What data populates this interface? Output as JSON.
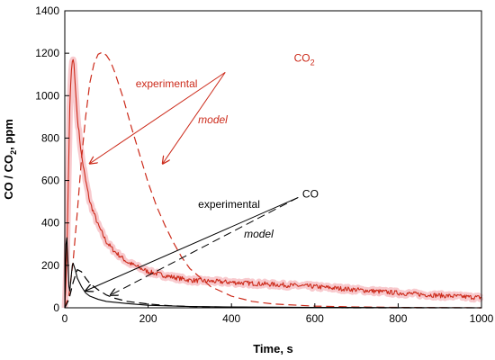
{
  "chart_data": {
    "type": "line",
    "xlabel": "Time, s",
    "ylabel_main": "CO / CO",
    "ylabel_sub": "2",
    "ylabel_tail": ", ppm",
    "xlim": [
      0,
      1000
    ],
    "ylim": [
      0,
      1400
    ],
    "xticks": [
      0,
      200,
      400,
      600,
      800,
      1000
    ],
    "yticks": [
      0,
      200,
      400,
      600,
      800,
      1000,
      1200,
      1400
    ],
    "grid": false,
    "colors": {
      "co2": "#cc2a1a",
      "co": "#000000",
      "co2_exp_fill": "#f5b8bd"
    },
    "series": [
      {
        "name": "CO2 experimental",
        "style": "solid",
        "color": "#cc2a1a",
        "x": [
          0,
          3,
          6,
          9,
          12,
          15,
          18,
          20,
          22,
          25,
          30,
          40,
          50,
          60,
          80,
          100,
          120,
          150,
          200,
          250,
          300,
          400,
          500,
          600,
          700,
          800,
          900,
          1000
        ],
        "y": [
          0,
          120,
          350,
          650,
          950,
          1100,
          1160,
          1170,
          1150,
          1050,
          900,
          720,
          600,
          500,
          390,
          310,
          265,
          215,
          170,
          148,
          130,
          120,
          110,
          100,
          85,
          70,
          58,
          48
        ]
      },
      {
        "name": "CO2 model",
        "style": "dashed",
        "color": "#cc2a1a",
        "x": [
          0,
          10,
          20,
          30,
          40,
          50,
          60,
          70,
          80,
          90,
          100,
          110,
          120,
          140,
          160,
          180,
          200,
          220,
          240,
          260,
          280,
          300,
          350,
          400,
          450,
          500,
          600,
          700,
          800,
          900,
          1000
        ],
        "y": [
          0,
          60,
          220,
          450,
          700,
          900,
          1060,
          1150,
          1195,
          1205,
          1190,
          1160,
          1110,
          990,
          850,
          720,
          590,
          480,
          390,
          310,
          240,
          185,
          100,
          55,
          30,
          18,
          8,
          4,
          2,
          1,
          0
        ]
      },
      {
        "name": "CO experimental",
        "style": "solid",
        "color": "#000000",
        "x": [
          0,
          3,
          5,
          8,
          10,
          12,
          15,
          18,
          20,
          25,
          30,
          40,
          50,
          60,
          80,
          100,
          150,
          200,
          300,
          400,
          600,
          800,
          1000
        ],
        "y": [
          0,
          300,
          330,
          200,
          100,
          80,
          140,
          200,
          210,
          180,
          140,
          100,
          70,
          55,
          40,
          30,
          20,
          12,
          6,
          4,
          2,
          1,
          0
        ]
      },
      {
        "name": "CO model",
        "style": "dashed",
        "color": "#000000",
        "x": [
          0,
          10,
          20,
          30,
          40,
          50,
          60,
          80,
          100,
          120,
          150,
          200,
          250,
          300,
          400,
          500,
          700,
          1000
        ],
        "y": [
          0,
          40,
          120,
          180,
          170,
          140,
          115,
          85,
          60,
          45,
          30,
          18,
          10,
          6,
          3,
          1,
          0,
          0
        ]
      }
    ],
    "annotations": [
      {
        "id": "co2",
        "text_main": "CO",
        "text_sub": "2",
        "color": "#cc2a1a",
        "italic": false,
        "x": 550,
        "y": 1160
      },
      {
        "id": "co2-exp",
        "text": "experimental",
        "color": "#cc2a1a",
        "italic": false,
        "x": 170,
        "y": 1040
      },
      {
        "id": "co2-model",
        "text": "model",
        "color": "#cc2a1a",
        "italic": true,
        "x": 320,
        "y": 870
      },
      {
        "id": "co",
        "text": "CO",
        "color": "#000000",
        "italic": false,
        "x": 570,
        "y": 520
      },
      {
        "id": "co-exp",
        "text": "experimental",
        "color": "#000000",
        "italic": false,
        "x": 320,
        "y": 470
      },
      {
        "id": "co-model",
        "text": "model",
        "color": "#000000",
        "italic": true,
        "x": 430,
        "y": 330
      }
    ],
    "arrows": [
      {
        "color": "#cc2a1a",
        "style": "solid",
        "from": [
          385,
          1110
        ],
        "to": [
          60,
          680
        ]
      },
      {
        "color": "#cc2a1a",
        "style": "solid",
        "from": [
          385,
          1110
        ],
        "to": [
          235,
          680
        ]
      },
      {
        "color": "#000000",
        "style": "solid",
        "from": [
          560,
          520
        ],
        "to": [
          50,
          80
        ]
      },
      {
        "color": "#000000",
        "style": "dashed",
        "from": [
          560,
          520
        ],
        "to": [
          110,
          60
        ]
      }
    ]
  }
}
